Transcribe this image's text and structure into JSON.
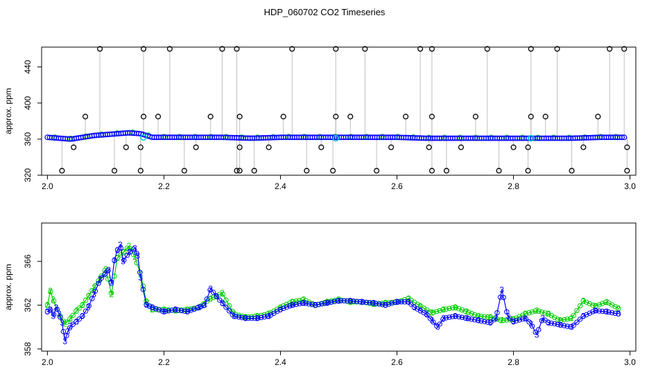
{
  "figure": {
    "title": "HDP_060702  CO2 Timeseries"
  },
  "chart_data": [
    {
      "type": "scatter",
      "ylabel": "approx. ppm",
      "xlim": [
        1.99,
        3.01
      ],
      "ylim": [
        320,
        462
      ],
      "x_ticks": [
        2.0,
        2.2,
        2.4,
        2.6,
        2.8,
        3.0
      ],
      "x_tick_labels": [
        "2.0",
        "2.2",
        "2.4",
        "2.6",
        "2.8",
        "3.0"
      ],
      "y_ticks": [
        320,
        360,
        400,
        440
      ],
      "y_tick_labels": [
        "320",
        "360",
        "400",
        "440"
      ],
      "colors": {
        "raw": "#000000",
        "trace": "#7f7f7f",
        "series2": "#00cc00",
        "series3": "#0000ff",
        "cyan": "#00cccc"
      },
      "baseline_x": [
        2.0,
        2.02,
        2.04,
        2.06,
        2.08,
        2.1,
        2.12,
        2.14,
        2.16,
        2.18,
        2.2,
        2.25,
        2.3,
        2.35,
        2.4,
        2.45,
        2.5,
        2.55,
        2.6,
        2.65,
        2.7,
        2.75,
        2.8,
        2.85,
        2.9,
        2.95,
        2.99
      ],
      "baseline_y": [
        362,
        361,
        360,
        362,
        364,
        365,
        366,
        367,
        366,
        362,
        362,
        362,
        362,
        361,
        362,
        362,
        362,
        362,
        362,
        361,
        361,
        361,
        361,
        361,
        361,
        362,
        362
      ],
      "outliers": [
        {
          "x": 2.09,
          "y": 460
        },
        {
          "x": 2.165,
          "y": 460
        },
        {
          "x": 2.21,
          "y": 460
        },
        {
          "x": 2.3,
          "y": 460
        },
        {
          "x": 2.325,
          "y": 460
        },
        {
          "x": 2.42,
          "y": 460
        },
        {
          "x": 2.495,
          "y": 460
        },
        {
          "x": 2.545,
          "y": 460
        },
        {
          "x": 2.64,
          "y": 460
        },
        {
          "x": 2.66,
          "y": 460
        },
        {
          "x": 2.755,
          "y": 460
        },
        {
          "x": 2.83,
          "y": 460
        },
        {
          "x": 2.875,
          "y": 460
        },
        {
          "x": 2.965,
          "y": 460
        },
        {
          "x": 2.99,
          "y": 460
        },
        {
          "x": 2.065,
          "y": 385
        },
        {
          "x": 2.165,
          "y": 385
        },
        {
          "x": 2.19,
          "y": 385
        },
        {
          "x": 2.28,
          "y": 385
        },
        {
          "x": 2.33,
          "y": 385
        },
        {
          "x": 2.405,
          "y": 385
        },
        {
          "x": 2.495,
          "y": 385
        },
        {
          "x": 2.52,
          "y": 385
        },
        {
          "x": 2.615,
          "y": 385
        },
        {
          "x": 2.66,
          "y": 385
        },
        {
          "x": 2.735,
          "y": 385
        },
        {
          "x": 2.83,
          "y": 385
        },
        {
          "x": 2.855,
          "y": 385
        },
        {
          "x": 2.945,
          "y": 385
        },
        {
          "x": 2.045,
          "y": 351
        },
        {
          "x": 2.135,
          "y": 351
        },
        {
          "x": 2.16,
          "y": 351
        },
        {
          "x": 2.255,
          "y": 351
        },
        {
          "x": 2.33,
          "y": 351
        },
        {
          "x": 2.38,
          "y": 351
        },
        {
          "x": 2.47,
          "y": 351
        },
        {
          "x": 2.59,
          "y": 351
        },
        {
          "x": 2.655,
          "y": 351
        },
        {
          "x": 2.71,
          "y": 351
        },
        {
          "x": 2.8,
          "y": 351
        },
        {
          "x": 2.825,
          "y": 351
        },
        {
          "x": 2.92,
          "y": 351
        },
        {
          "x": 2.995,
          "y": 351
        },
        {
          "x": 2.025,
          "y": 325
        },
        {
          "x": 2.115,
          "y": 325
        },
        {
          "x": 2.16,
          "y": 325
        },
        {
          "x": 2.235,
          "y": 325
        },
        {
          "x": 2.325,
          "y": 325
        },
        {
          "x": 2.33,
          "y": 325
        },
        {
          "x": 2.355,
          "y": 325
        },
        {
          "x": 2.445,
          "y": 325
        },
        {
          "x": 2.49,
          "y": 325
        },
        {
          "x": 2.565,
          "y": 325
        },
        {
          "x": 2.66,
          "y": 325
        },
        {
          "x": 2.685,
          "y": 325
        },
        {
          "x": 2.775,
          "y": 325
        },
        {
          "x": 2.825,
          "y": 325
        },
        {
          "x": 2.9,
          "y": 325
        },
        {
          "x": 2.995,
          "y": 325
        }
      ],
      "cyan_points": [
        {
          "x": 2.165,
          "y": 362
        },
        {
          "x": 2.495,
          "y": 361
        },
        {
          "x": 2.83,
          "y": 361
        }
      ]
    },
    {
      "type": "line",
      "ylabel": "approx. ppm",
      "xlim": [
        1.99,
        3.01
      ],
      "ylim": [
        357.8,
        369.5
      ],
      "x_ticks": [
        2.0,
        2.2,
        2.4,
        2.6,
        2.8,
        3.0
      ],
      "x_tick_labels": [
        "2.0",
        "2.2",
        "2.4",
        "2.6",
        "2.8",
        "3.0"
      ],
      "y_ticks": [
        358,
        362,
        366
      ],
      "y_tick_labels": [
        "358",
        "362",
        "366"
      ],
      "series": [
        {
          "marker": "2",
          "color": "#00cc00",
          "x": [
            2.0,
            2.005,
            2.01,
            2.015,
            2.02,
            2.03,
            2.04,
            2.05,
            2.06,
            2.07,
            2.08,
            2.09,
            2.1,
            2.11,
            2.12,
            2.13,
            2.14,
            2.15,
            2.16,
            2.17,
            2.18,
            2.2,
            2.22,
            2.24,
            2.26,
            2.28,
            2.3,
            2.32,
            2.34,
            2.36,
            2.38,
            2.4,
            2.42,
            2.44,
            2.46,
            2.48,
            2.5,
            2.52,
            2.54,
            2.56,
            2.58,
            2.6,
            2.62,
            2.64,
            2.66,
            2.68,
            2.7,
            2.72,
            2.74,
            2.76,
            2.78,
            2.8,
            2.82,
            2.84,
            2.86,
            2.88,
            2.9,
            2.92,
            2.94,
            2.96,
            2.98
          ],
          "y": [
            362.0,
            363.3,
            362.5,
            361.8,
            361.2,
            360.3,
            360.8,
            361.5,
            362.0,
            362.8,
            363.6,
            364.4,
            365.3,
            363.0,
            366.3,
            366.8,
            367.4,
            366.4,
            364.8,
            362.3,
            361.6,
            361.6,
            361.5,
            361.6,
            361.8,
            362.6,
            363.1,
            361.2,
            360.9,
            361.0,
            361.2,
            361.8,
            362.3,
            362.5,
            362.0,
            362.3,
            362.5,
            362.3,
            362.3,
            362.1,
            362.2,
            362.3,
            362.6,
            361.9,
            361.3,
            361.6,
            361.8,
            361.4,
            361.0,
            360.9,
            360.6,
            360.7,
            361.2,
            361.5,
            361.2,
            360.6,
            360.8,
            362.4,
            361.9,
            362.3,
            361.7
          ]
        },
        {
          "marker": "3",
          "color": "#0000ff",
          "x": [
            2.0,
            2.005,
            2.01,
            2.015,
            2.02,
            2.025,
            2.03,
            2.035,
            2.04,
            2.05,
            2.06,
            2.07,
            2.08,
            2.09,
            2.1,
            2.105,
            2.11,
            2.115,
            2.12,
            2.125,
            2.13,
            2.14,
            2.15,
            2.155,
            2.16,
            2.17,
            2.18,
            2.2,
            2.22,
            2.24,
            2.26,
            2.27,
            2.28,
            2.29,
            2.3,
            2.32,
            2.34,
            2.36,
            2.38,
            2.4,
            2.42,
            2.44,
            2.46,
            2.48,
            2.5,
            2.52,
            2.54,
            2.56,
            2.58,
            2.6,
            2.62,
            2.63,
            2.64,
            2.65,
            2.66,
            2.67,
            2.68,
            2.7,
            2.72,
            2.74,
            2.76,
            2.77,
            2.78,
            2.79,
            2.8,
            2.82,
            2.83,
            2.84,
            2.85,
            2.86,
            2.88,
            2.9,
            2.92,
            2.94,
            2.96,
            2.98
          ],
          "y": [
            361.4,
            361.6,
            361.0,
            361.8,
            361.2,
            360.4,
            358.7,
            359.6,
            360.1,
            360.5,
            361.0,
            361.8,
            363.0,
            364.3,
            364.9,
            365.2,
            364.0,
            366.1,
            367.0,
            367.5,
            366.0,
            366.8,
            367.2,
            366.5,
            364.5,
            362.0,
            361.8,
            361.4,
            361.6,
            361.4,
            361.8,
            362.0,
            363.5,
            362.8,
            362.2,
            361.0,
            360.8,
            360.8,
            361.0,
            361.6,
            362.0,
            362.2,
            362.0,
            362.2,
            362.4,
            362.4,
            362.3,
            362.2,
            362.0,
            362.3,
            362.3,
            361.8,
            361.5,
            361.2,
            360.6,
            360.0,
            360.8,
            361.0,
            360.8,
            360.6,
            360.4,
            360.8,
            363.4,
            361.0,
            360.5,
            360.8,
            360.3,
            359.3,
            360.8,
            360.4,
            360.2,
            360.0,
            361.0,
            361.5,
            361.4,
            361.2
          ]
        }
      ]
    }
  ]
}
